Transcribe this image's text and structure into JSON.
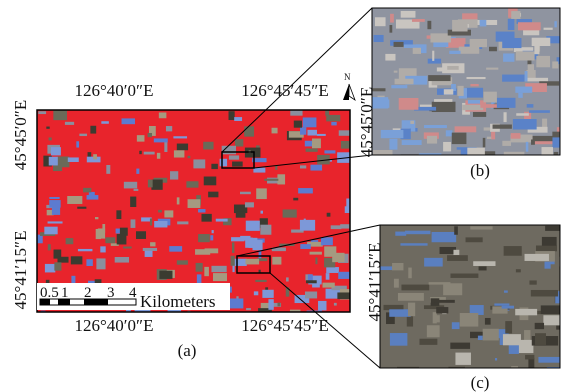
{
  "map": {
    "top_labels": [
      "126°40′0″E",
      "126°45′45″E"
    ],
    "bottom_labels": [
      "126°40′0″E",
      "126°45′45″E"
    ],
    "left_labels": [
      "45°45′0″E",
      "45°41′15″E"
    ],
    "north": "N",
    "scale_ticks": [
      "0.5",
      "1",
      "2",
      "3",
      "4"
    ],
    "scale_unit": "Kilometers",
    "caption": "(a)"
  },
  "insets": [
    {
      "right_label": "45°45′0″E",
      "caption": "(b)"
    },
    {
      "right_label": "45°41′15″E",
      "caption": "(c)"
    }
  ]
}
